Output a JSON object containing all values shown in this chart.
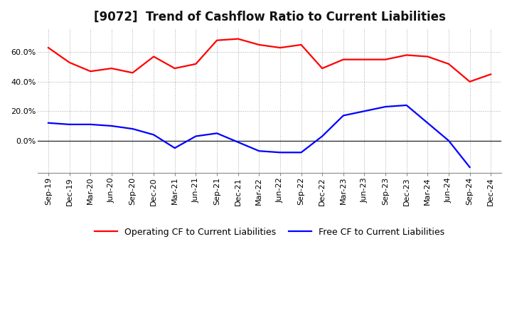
{
  "title": "[9072]  Trend of Cashflow Ratio to Current Liabilities",
  "x_labels": [
    "Sep-19",
    "Dec-19",
    "Mar-20",
    "Jun-20",
    "Sep-20",
    "Dec-20",
    "Mar-21",
    "Jun-21",
    "Sep-21",
    "Dec-21",
    "Mar-22",
    "Jun-22",
    "Sep-22",
    "Dec-22",
    "Mar-23",
    "Jun-23",
    "Sep-23",
    "Dec-23",
    "Mar-24",
    "Jun-24",
    "Sep-24",
    "Dec-24"
  ],
  "operating_cf": [
    63,
    53,
    47,
    49,
    46,
    57,
    49,
    52,
    68,
    69,
    65,
    63,
    65,
    49,
    55,
    55,
    55,
    58,
    57,
    52,
    40,
    45
  ],
  "free_cf": [
    12,
    11,
    11,
    10,
    8,
    4,
    -5,
    3,
    5,
    -1,
    -7,
    -8,
    -8,
    3,
    17,
    20,
    23,
    24,
    12,
    0,
    -18,
    null
  ],
  "operating_color": "#FF0000",
  "free_color": "#0000FF",
  "ylim_min": -22,
  "ylim_max": 76,
  "yticks": [
    0,
    20,
    40,
    60
  ],
  "ytick_labels": [
    "0.0%",
    "20.0%",
    "40.0%",
    "60.0%"
  ],
  "background_color": "#FFFFFF",
  "plot_bg_color": "#FFFFFF",
  "grid_color": "#AAAAAA",
  "legend_op": "Operating CF to Current Liabilities",
  "legend_free": "Free CF to Current Liabilities",
  "title_fontsize": 12,
  "tick_fontsize": 8,
  "legend_fontsize": 9,
  "line_width": 1.6
}
